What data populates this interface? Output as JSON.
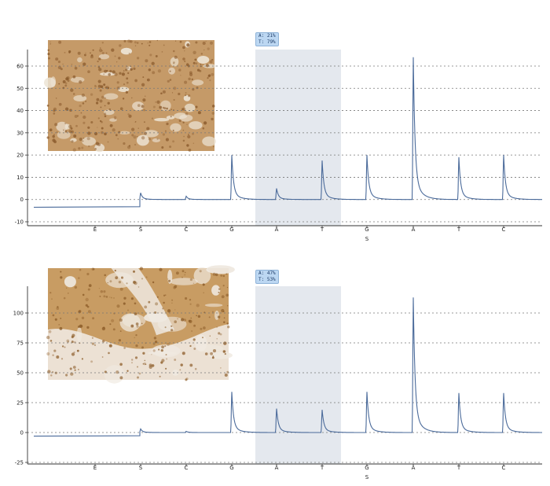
{
  "chart_data": [
    {
      "type": "line",
      "title": "",
      "xlabel": "",
      "ylabel": "",
      "ylim": [
        -10,
        65
      ],
      "yticks": [
        -10,
        0,
        10,
        20,
        30,
        40,
        50,
        60
      ],
      "grid": true,
      "dispensation": [
        "E",
        "S",
        "C",
        "G",
        "A",
        "T",
        "G",
        "A",
        "T",
        "C"
      ],
      "peaks": [
        0,
        3,
        1.5,
        20,
        5,
        17.5,
        20,
        64,
        19,
        20
      ],
      "baseline_start": -3.5,
      "highlight": {
        "from": "A",
        "to": "T",
        "label_a": "A: 21%",
        "label_t": "T: 79%"
      },
      "sequence_marker": "S",
      "tissue_colors": {
        "base": "#c59a68",
        "dark": "#8a5a2c",
        "light": "#ece3d4"
      }
    },
    {
      "type": "line",
      "title": "",
      "xlabel": "",
      "ylabel": "",
      "ylim": [
        -25,
        120
      ],
      "yticks": [
        -25,
        0,
        25,
        50,
        75,
        100
      ],
      "grid": true,
      "dispensation": [
        "E",
        "S",
        "C",
        "G",
        "A",
        "T",
        "G",
        "A",
        "T",
        "C"
      ],
      "peaks": [
        0,
        3,
        1,
        34,
        20,
        19,
        34,
        113,
        33,
        33
      ],
      "baseline_start": -3,
      "highlight": {
        "from": "A",
        "to": "T",
        "label_a": "A: 47%",
        "label_t": "T: 53%"
      },
      "sequence_marker": "S",
      "tissue_colors": {
        "base": "#c89c63",
        "dark": "#8c5c28",
        "light": "#efe9e0"
      }
    }
  ]
}
